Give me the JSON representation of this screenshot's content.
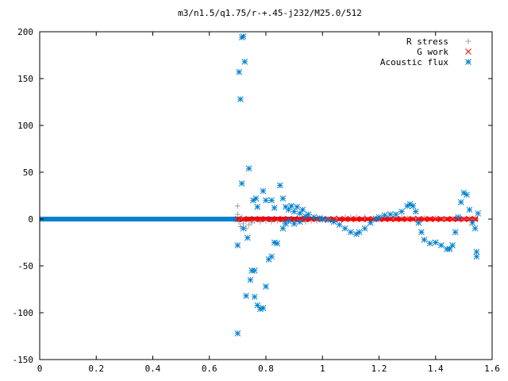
{
  "chart_data": {
    "type": "scatter",
    "title": "m3/n1.5/q1.75/r-+.45-j232/M25.0/512",
    "xlabel": "",
    "ylabel": "",
    "xlim": [
      0,
      1.6
    ],
    "ylim": [
      -150,
      200
    ],
    "x_ticks": [
      "0",
      "0.2",
      "0.4",
      "0.6",
      "0.8",
      "1",
      "1.2",
      "1.4",
      "1.6"
    ],
    "y_ticks": [
      "200",
      "150",
      "100",
      "50",
      "0",
      "-50",
      "-100",
      "-150"
    ],
    "x_tick_values": [
      0,
      0.2,
      0.4,
      0.6,
      0.8,
      1.0,
      1.2,
      1.4,
      1.6
    ],
    "y_tick_values": [
      200,
      150,
      100,
      50,
      0,
      -50,
      -100,
      -150
    ],
    "grid": false,
    "legend_position": "top-right",
    "series": [
      {
        "name": "R stress",
        "marker": "plus",
        "color": "#a0a0a0",
        "points": [
          [
            0.7,
            14
          ],
          [
            0.7,
            5
          ],
          [
            0.705,
            -3
          ],
          [
            0.71,
            -8
          ],
          [
            0.715,
            2
          ],
          [
            0.72,
            -5
          ],
          [
            0.73,
            -10
          ],
          [
            0.74,
            -6
          ],
          [
            0.75,
            -4
          ],
          [
            0.76,
            -2
          ],
          [
            0.78,
            -3
          ],
          [
            0.8,
            -2
          ],
          [
            0.82,
            -3
          ],
          [
            0.84,
            -2
          ],
          [
            0.86,
            -3
          ],
          [
            0.88,
            -2
          ],
          [
            0.9,
            -3
          ],
          [
            0.92,
            -2
          ],
          [
            0.94,
            -3
          ],
          [
            0.96,
            -2
          ],
          [
            0.98,
            -2
          ],
          [
            1.0,
            -1
          ],
          [
            1.02,
            0
          ],
          [
            1.05,
            1
          ],
          [
            1.08,
            2
          ],
          [
            1.1,
            2
          ],
          [
            1.12,
            2
          ],
          [
            1.15,
            2
          ],
          [
            1.18,
            1
          ],
          [
            1.2,
            1
          ],
          [
            1.22,
            2
          ],
          [
            1.25,
            2
          ],
          [
            1.28,
            2
          ],
          [
            1.3,
            1
          ],
          [
            1.33,
            1
          ],
          [
            1.36,
            1
          ],
          [
            1.4,
            1
          ],
          [
            1.43,
            0
          ],
          [
            1.46,
            0
          ],
          [
            1.5,
            0
          ],
          [
            1.52,
            0
          ],
          [
            1.54,
            0
          ]
        ]
      },
      {
        "name": "G work",
        "marker": "cross",
        "color": "#ff0000",
        "points": [
          [
            0.7,
            0
          ],
          [
            0.72,
            0
          ],
          [
            0.74,
            0
          ],
          [
            0.76,
            0
          ],
          [
            0.78,
            0
          ],
          [
            0.8,
            0
          ],
          [
            0.82,
            0
          ],
          [
            0.84,
            0
          ],
          [
            0.86,
            0
          ],
          [
            0.88,
            0
          ],
          [
            0.9,
            0
          ],
          [
            0.92,
            0
          ],
          [
            0.94,
            0
          ],
          [
            0.96,
            0
          ],
          [
            0.98,
            0
          ],
          [
            1.0,
            0
          ],
          [
            1.02,
            0
          ],
          [
            1.04,
            0
          ],
          [
            1.06,
            0
          ],
          [
            1.08,
            0
          ],
          [
            1.1,
            0
          ],
          [
            1.12,
            0
          ],
          [
            1.14,
            0
          ],
          [
            1.16,
            0
          ],
          [
            1.18,
            0
          ],
          [
            1.2,
            0
          ],
          [
            1.22,
            0
          ],
          [
            1.24,
            0
          ],
          [
            1.26,
            0
          ],
          [
            1.28,
            0
          ],
          [
            1.3,
            0
          ],
          [
            1.32,
            0
          ],
          [
            1.34,
            0
          ],
          [
            1.36,
            0
          ],
          [
            1.38,
            0
          ],
          [
            1.4,
            0
          ],
          [
            1.42,
            0
          ],
          [
            1.44,
            0
          ],
          [
            1.46,
            0
          ],
          [
            1.48,
            0
          ],
          [
            1.5,
            0
          ],
          [
            1.52,
            0
          ],
          [
            1.54,
            0
          ]
        ]
      },
      {
        "name": "Acoustic flux",
        "marker": "star",
        "color": "#0080d0",
        "points": [
          [
            0.72,
            195
          ],
          [
            0.715,
            194
          ],
          [
            0.705,
            157
          ],
          [
            0.725,
            168
          ],
          [
            0.71,
            128
          ],
          [
            0.74,
            54
          ],
          [
            0.715,
            38
          ],
          [
            0.755,
            20
          ],
          [
            0.765,
            22
          ],
          [
            0.77,
            13
          ],
          [
            0.79,
            30
          ],
          [
            0.8,
            20
          ],
          [
            0.82,
            20
          ],
          [
            0.83,
            12
          ],
          [
            0.85,
            36
          ],
          [
            0.86,
            22
          ],
          [
            0.87,
            13
          ],
          [
            0.88,
            10
          ],
          [
            0.89,
            14
          ],
          [
            0.9,
            8
          ],
          [
            0.91,
            13
          ],
          [
            0.92,
            6
          ],
          [
            0.93,
            10
          ],
          [
            0.94,
            3
          ],
          [
            0.95,
            5
          ],
          [
            0.97,
            2
          ],
          [
            0.99,
            1
          ],
          [
            0.7,
            -28
          ],
          [
            0.72,
            -10
          ],
          [
            0.73,
            -82
          ],
          [
            0.745,
            -65
          ],
          [
            0.75,
            -55
          ],
          [
            0.76,
            -55
          ],
          [
            0.76,
            -83
          ],
          [
            0.77,
            -92
          ],
          [
            0.78,
            -96
          ],
          [
            0.79,
            -95
          ],
          [
            0.8,
            -72
          ],
          [
            0.81,
            -43
          ],
          [
            0.82,
            -40
          ],
          [
            0.83,
            -25
          ],
          [
            0.84,
            -26
          ],
          [
            0.86,
            -10
          ],
          [
            0.87,
            -5
          ],
          [
            0.88,
            -2
          ],
          [
            0.9,
            -5
          ],
          [
            0.92,
            -3
          ],
          [
            0.7,
            -122
          ],
          [
            0.735,
            -20
          ],
          [
            1.0,
            0
          ],
          [
            1.02,
            -1
          ],
          [
            1.04,
            -3
          ],
          [
            1.06,
            -6
          ],
          [
            1.08,
            -10
          ],
          [
            1.1,
            -14
          ],
          [
            1.12,
            -16
          ],
          [
            1.13,
            -14
          ],
          [
            1.15,
            -10
          ],
          [
            1.17,
            -4
          ],
          [
            1.19,
            0
          ],
          [
            1.2,
            2
          ],
          [
            1.22,
            4
          ],
          [
            1.24,
            5
          ],
          [
            1.26,
            5
          ],
          [
            1.28,
            8
          ],
          [
            1.3,
            14
          ],
          [
            1.31,
            16
          ],
          [
            1.32,
            14
          ],
          [
            1.33,
            8
          ],
          [
            1.34,
            -4
          ],
          [
            1.35,
            -14
          ],
          [
            1.36,
            -22
          ],
          [
            1.38,
            -26
          ],
          [
            1.4,
            -25
          ],
          [
            1.42,
            -28
          ],
          [
            1.44,
            -32
          ],
          [
            1.45,
            -32
          ],
          [
            1.46,
            -28
          ],
          [
            1.47,
            -14
          ],
          [
            1.48,
            2
          ],
          [
            1.49,
            18
          ],
          [
            1.5,
            28
          ],
          [
            1.51,
            26
          ],
          [
            1.52,
            10
          ],
          [
            1.53,
            -4
          ],
          [
            1.54,
            -10
          ],
          [
            1.545,
            -35
          ],
          [
            1.545,
            -40
          ],
          [
            1.55,
            6
          ]
        ]
      }
    ]
  }
}
